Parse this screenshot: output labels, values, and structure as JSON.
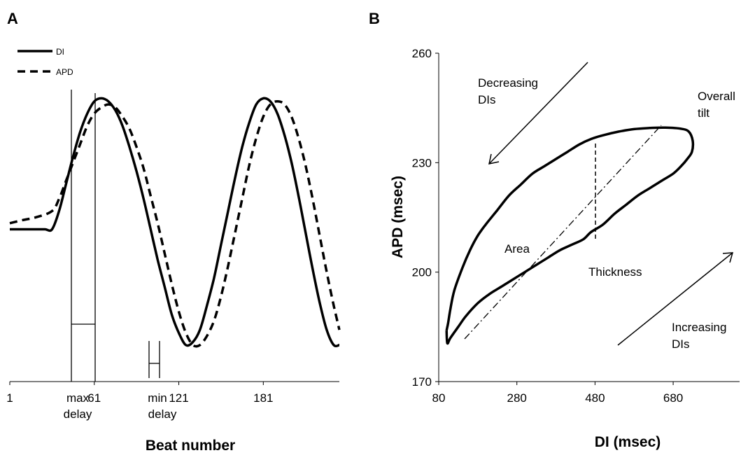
{
  "chart_data": [
    {
      "panel_label": "A",
      "type": "line",
      "xlabel": "Beat number",
      "ylabel": "",
      "xlim": [
        1,
        235
      ],
      "ylim": [
        0,
        1
      ],
      "x_ticks": [
        "1",
        "61",
        "121",
        "181"
      ],
      "legend": {
        "placement": "top-left"
      },
      "series": [
        {
          "name": "DI",
          "style": "solid",
          "x": [
            1,
            8,
            14,
            20,
            26,
            31,
            36,
            41,
            46,
            51,
            56,
            61,
            66,
            71,
            76,
            81,
            86,
            91,
            96,
            101,
            106,
            111,
            116,
            121,
            126,
            131,
            136,
            141,
            146,
            151,
            156,
            161,
            166,
            171,
            176,
            181,
            186,
            191,
            196,
            201,
            206,
            211,
            216,
            221,
            226,
            231,
            235
          ],
          "y": [
            0.5,
            0.5,
            0.5,
            0.5,
            0.5,
            0.5,
            0.56,
            0.65,
            0.74,
            0.82,
            0.88,
            0.92,
            0.93,
            0.92,
            0.89,
            0.84,
            0.77,
            0.69,
            0.6,
            0.5,
            0.4,
            0.31,
            0.22,
            0.16,
            0.12,
            0.13,
            0.17,
            0.25,
            0.34,
            0.45,
            0.56,
            0.67,
            0.77,
            0.85,
            0.91,
            0.93,
            0.92,
            0.88,
            0.81,
            0.72,
            0.61,
            0.49,
            0.37,
            0.26,
            0.17,
            0.12,
            0.12
          ]
        },
        {
          "name": "APD",
          "style": "dashed",
          "x": [
            1,
            10,
            20,
            31,
            36,
            41,
            46,
            51,
            56,
            61,
            66,
            71,
            76,
            81,
            86,
            91,
            96,
            101,
            106,
            111,
            116,
            121,
            126,
            131,
            136,
            141,
            146,
            151,
            156,
            161,
            166,
            171,
            176,
            181,
            186,
            191,
            196,
            201,
            206,
            211,
            216,
            221,
            226,
            231,
            235
          ],
          "y": [
            0.52,
            0.53,
            0.54,
            0.56,
            0.6,
            0.66,
            0.72,
            0.78,
            0.84,
            0.88,
            0.9,
            0.91,
            0.9,
            0.87,
            0.83,
            0.77,
            0.7,
            0.61,
            0.52,
            0.42,
            0.32,
            0.23,
            0.16,
            0.12,
            0.12,
            0.15,
            0.2,
            0.28,
            0.38,
            0.49,
            0.6,
            0.71,
            0.8,
            0.87,
            0.91,
            0.92,
            0.91,
            0.87,
            0.8,
            0.71,
            0.6,
            0.48,
            0.36,
            0.25,
            0.17
          ]
        }
      ],
      "annotations": [
        {
          "text": [
            "max",
            "delay"
          ],
          "x_from": 31,
          "x_to": 56
        },
        {
          "text": [
            "min",
            "delay"
          ],
          "x_from": 101,
          "x_to": 108
        }
      ]
    },
    {
      "panel_label": "B",
      "type": "line",
      "xlabel": "DI (msec)",
      "ylabel": "APD (msec)",
      "xlim": [
        80,
        850
      ],
      "ylim": [
        170,
        260
      ],
      "x_ticks": [
        80,
        280,
        480,
        680
      ],
      "y_ticks": [
        170,
        200,
        230,
        260
      ],
      "series": [
        {
          "name": "",
          "style": "solid",
          "x": [
            100,
            104,
            110,
            120,
            140,
            160,
            180,
            200,
            230,
            260,
            290,
            320,
            350,
            380,
            410,
            440,
            470,
            500,
            540,
            580,
            620,
            660,
            700,
            720,
            730,
            728,
            716,
            700,
            680,
            650,
            620,
            590,
            560,
            530,
            500,
            470,
            450,
            420,
            390,
            360,
            330,
            300,
            270,
            240,
            210,
            180,
            150,
            130,
            110,
            102,
            100
          ],
          "y": [
            184,
            186,
            190,
            195,
            201,
            206,
            210,
            213,
            217,
            221,
            224,
            227,
            229,
            231,
            233,
            235,
            236.5,
            237.5,
            238.5,
            239.2,
            239.5,
            239.6,
            239.3,
            238.5,
            236,
            233,
            231,
            229,
            227,
            225,
            223,
            221,
            218.5,
            216,
            213,
            211,
            209,
            207.5,
            206,
            204,
            202,
            200,
            198,
            196,
            194,
            191.5,
            188,
            185,
            182,
            180.5,
            184
          ]
        }
      ],
      "annotations": [
        {
          "text": [
            "Decreasing",
            "DIs"
          ]
        },
        {
          "text": [
            "Increasing",
            "DIs"
          ]
        },
        {
          "text": [
            "Overall",
            "tilt"
          ]
        },
        {
          "text": [
            "Area"
          ]
        },
        {
          "text": [
            "Thickness"
          ]
        }
      ]
    }
  ]
}
